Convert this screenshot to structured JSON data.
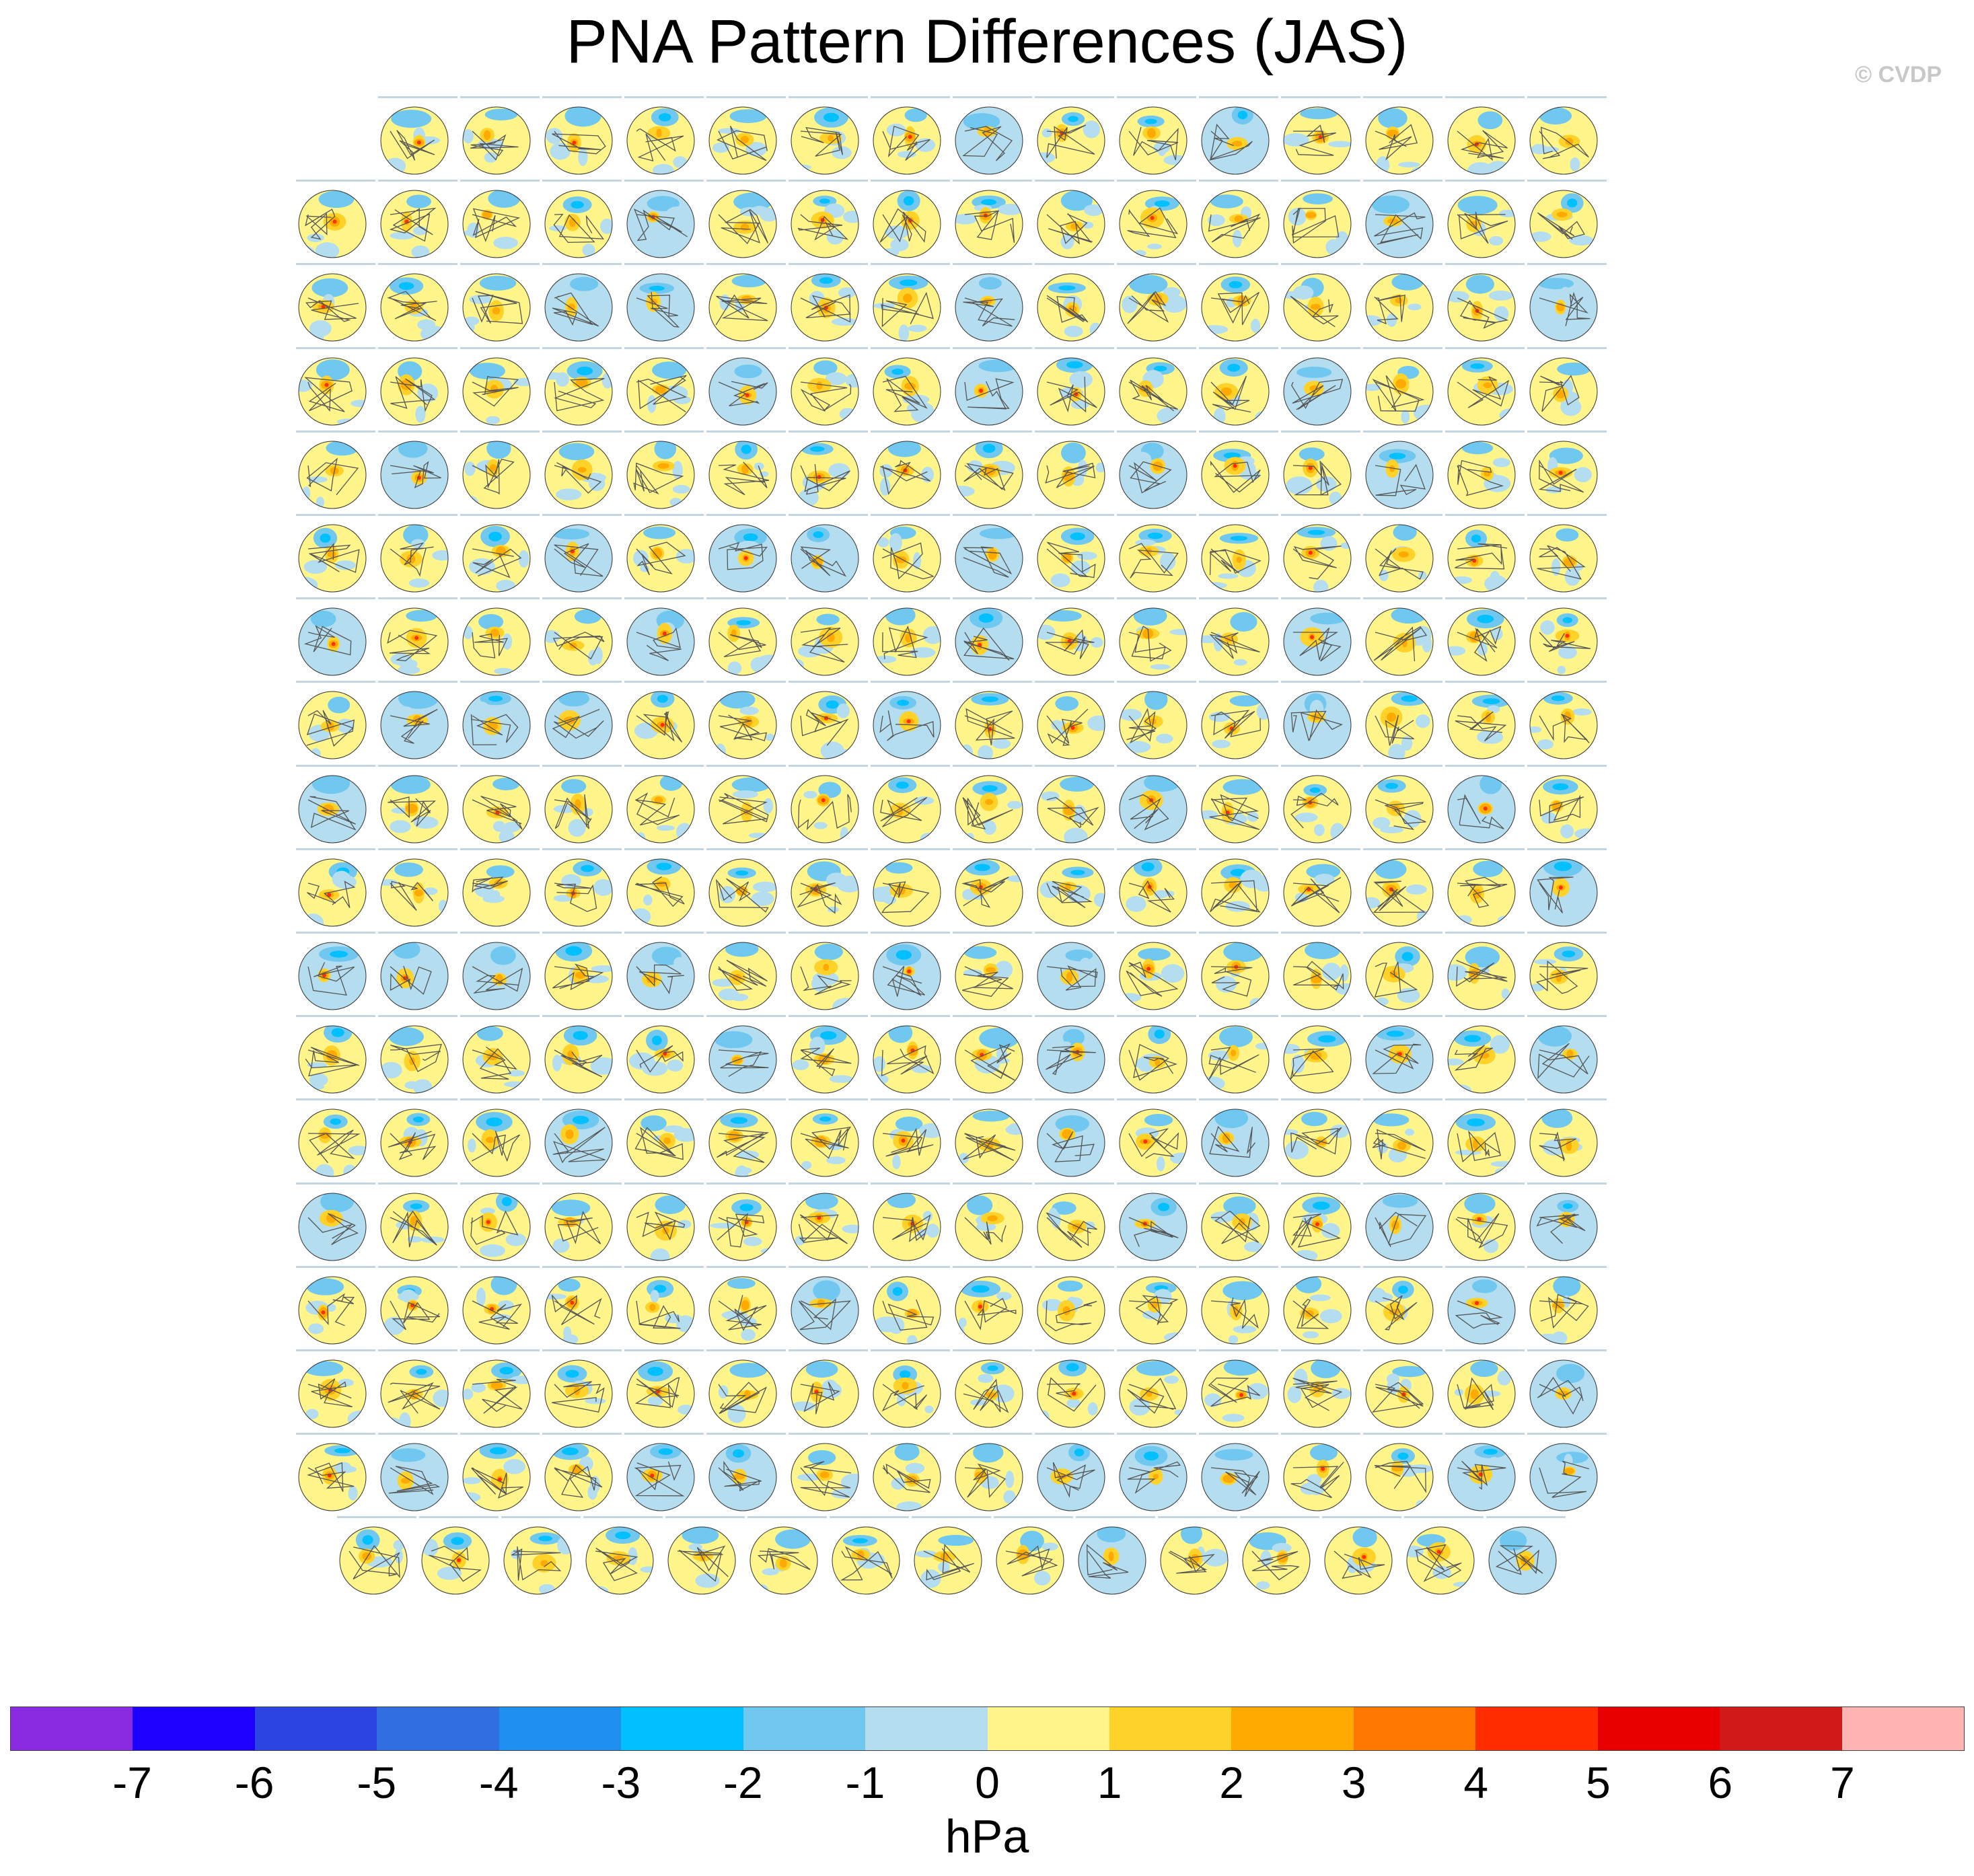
{
  "title": "PNA Pattern Differences (JAS)",
  "watermark": "© CVDP",
  "unit": "hPa",
  "panels": {
    "row_counts": [
      15,
      16,
      16,
      16,
      16,
      16,
      16,
      16,
      16,
      16,
      16,
      16,
      16,
      16,
      16,
      16,
      16,
      15
    ],
    "content": "polar stereographic maps of sea level pressure differences"
  },
  "colorbar": {
    "colors": [
      "#8a2be2",
      "#1e00ff",
      "#2c44e0",
      "#2f6fe0",
      "#2090f0",
      "#00c0ff",
      "#70c8f0",
      "#b4def0",
      "#fff58a",
      "#ffd22a",
      "#ffaa00",
      "#ff7800",
      "#ff2d00",
      "#e60000",
      "#d01a1a",
      "#ffb4b4"
    ],
    "tick_labels": [
      "-7",
      "-6",
      "-5",
      "-4",
      "-3",
      "-2",
      "-1",
      "0",
      "1",
      "2",
      "3",
      "4",
      "5",
      "6",
      "7"
    ]
  }
}
